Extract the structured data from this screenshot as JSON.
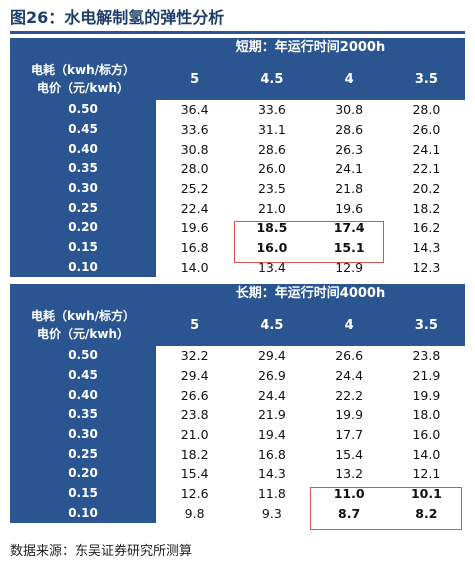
{
  "title": "图26：水电解制氢的弹性分析",
  "source": "数据来源：东吴证券研究所测算",
  "tables": [
    {
      "banner": "短期：年运行时间2000h",
      "row_header_line1": "电耗（kwh/标方）",
      "row_header_line2": "电价（元/kwh）",
      "columns": [
        "5",
        "4.5",
        "4",
        "3.5"
      ],
      "rows": [
        {
          "price": "0.50",
          "values": [
            "36.4",
            "33.6",
            "30.8",
            "28.0"
          ]
        },
        {
          "price": "0.45",
          "values": [
            "33.6",
            "31.1",
            "28.6",
            "26.0"
          ]
        },
        {
          "price": "0.40",
          "values": [
            "30.8",
            "28.6",
            "26.3",
            "24.1"
          ]
        },
        {
          "price": "0.35",
          "values": [
            "28.0",
            "26.0",
            "24.1",
            "22.1"
          ]
        },
        {
          "price": "0.30",
          "values": [
            "25.2",
            "23.5",
            "21.8",
            "20.2"
          ]
        },
        {
          "price": "0.25",
          "values": [
            "22.4",
            "21.0",
            "19.6",
            "18.2"
          ]
        },
        {
          "price": "0.20",
          "values": [
            "19.6",
            "18.5",
            "17.4",
            "16.2"
          ]
        },
        {
          "price": "0.15",
          "values": [
            "16.8",
            "16.0",
            "15.1",
            "14.3"
          ]
        },
        {
          "price": "0.10",
          "values": [
            "14.0",
            "13.4",
            "12.9",
            "12.3"
          ]
        }
      ]
    },
    {
      "banner": "长期：年运行时间4000h",
      "row_header_line1": "电耗（kwh/标方）",
      "row_header_line2": "电价（元/kwh）",
      "columns": [
        "5",
        "4.5",
        "4",
        "3.5"
      ],
      "rows": [
        {
          "price": "0.50",
          "values": [
            "32.2",
            "29.4",
            "26.6",
            "23.8"
          ]
        },
        {
          "price": "0.45",
          "values": [
            "29.4",
            "26.9",
            "24.4",
            "21.9"
          ]
        },
        {
          "price": "0.40",
          "values": [
            "26.6",
            "24.4",
            "22.2",
            "19.9"
          ]
        },
        {
          "price": "0.35",
          "values": [
            "23.8",
            "21.9",
            "19.9",
            "18.0"
          ]
        },
        {
          "price": "0.30",
          "values": [
            "21.0",
            "19.4",
            "17.7",
            "16.0"
          ]
        },
        {
          "price": "0.25",
          "values": [
            "18.2",
            "16.8",
            "15.4",
            "14.0"
          ]
        },
        {
          "price": "0.20",
          "values": [
            "15.4",
            "14.3",
            "13.2",
            "12.1"
          ]
        },
        {
          "price": "0.15",
          "values": [
            "12.6",
            "11.8",
            "11.0",
            "10.1"
          ]
        },
        {
          "price": "0.10",
          "values": [
            "9.8",
            "9.3",
            "8.7",
            "8.2"
          ]
        }
      ]
    }
  ],
  "colors": {
    "header_blue": "#2b5591",
    "title_blue": "#1f3d6b",
    "highlight_red": "#d9534f"
  }
}
